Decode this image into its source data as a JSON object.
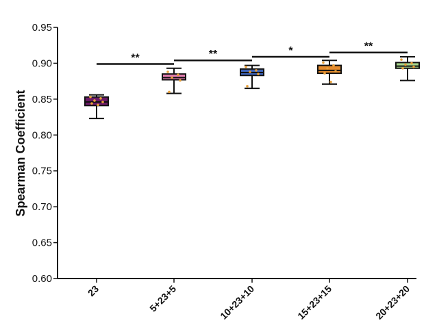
{
  "chart_data": {
    "type": "box",
    "title": "",
    "xlabel": "",
    "ylabel": "Spearman Coefficient",
    "ylim": [
      0.6,
      0.95
    ],
    "yticks": [
      0.6,
      0.65,
      0.7,
      0.75,
      0.8,
      0.85,
      0.9,
      0.95
    ],
    "ytick_labels": [
      "0.60",
      "0.65",
      "0.70",
      "0.75",
      "0.80",
      "0.85",
      "0.90",
      "0.95"
    ],
    "grid": false,
    "categories": [
      "23",
      "5+23+5",
      "10+23+10",
      "15+23+15",
      "20+23+20"
    ],
    "boxes": [
      {
        "name": "23",
        "min": 0.823,
        "q1": 0.841,
        "median": 0.846,
        "q3": 0.853,
        "max": 0.856,
        "color": "#6b1a66",
        "points": [
          0.853,
          0.851,
          0.848,
          0.846,
          0.844,
          0.842
        ]
      },
      {
        "name": "5+23+5",
        "min": 0.858,
        "q1": 0.877,
        "median": 0.88,
        "q3": 0.885,
        "max": 0.893,
        "color": "#e87fb3",
        "points": [
          0.888,
          0.884,
          0.88,
          0.876,
          0.86
        ]
      },
      {
        "name": "10+23+10",
        "min": 0.865,
        "q1": 0.883,
        "median": 0.887,
        "q3": 0.892,
        "max": 0.897,
        "color": "#3d63b8",
        "points": [
          0.895,
          0.89,
          0.888,
          0.885,
          0.868
        ]
      },
      {
        "name": "15+23+15",
        "min": 0.871,
        "q1": 0.886,
        "median": 0.89,
        "q3": 0.897,
        "max": 0.904,
        "color": "#e58b2d",
        "points": [
          0.901,
          0.897,
          0.893,
          0.889,
          0.886,
          0.874
        ]
      },
      {
        "name": "20+23+20",
        "min": 0.876,
        "q1": 0.893,
        "median": 0.896,
        "q3": 0.901,
        "max": 0.909,
        "color": "#a8d58c",
        "points": [
          0.905,
          0.9,
          0.898,
          0.895,
          0.893
        ]
      }
    ],
    "point_color": "#e8a03a",
    "significance": [
      {
        "from": 0,
        "to": 1,
        "y": 0.899,
        "label": "**"
      },
      {
        "from": 1,
        "to": 2,
        "y": 0.904,
        "label": "**"
      },
      {
        "from": 2,
        "to": 3,
        "y": 0.909,
        "label": "*"
      },
      {
        "from": 3,
        "to": 4,
        "y": 0.915,
        "label": "**"
      }
    ]
  }
}
